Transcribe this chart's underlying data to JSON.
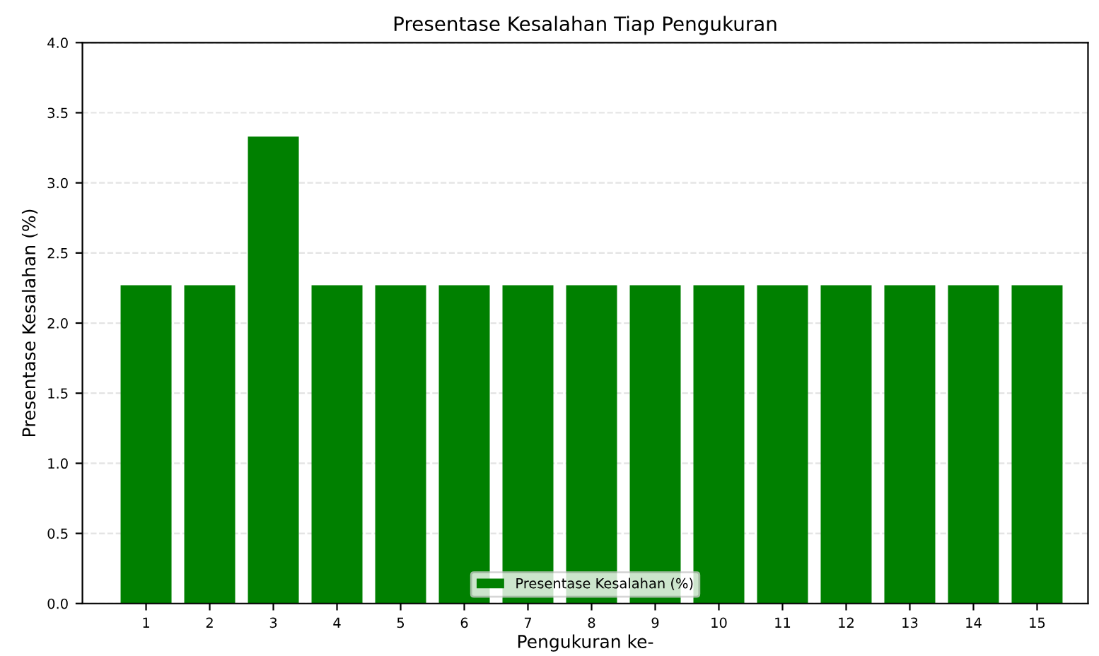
{
  "chart_data": {
    "type": "bar",
    "title": "Presentase Kesalahan Tiap Pengukuran",
    "xlabel": "Pengukuran ke-",
    "ylabel": "Presentase Kesalahan (%)",
    "categories": [
      "1",
      "2",
      "3",
      "4",
      "5",
      "6",
      "7",
      "8",
      "9",
      "10",
      "11",
      "12",
      "13",
      "14",
      "15"
    ],
    "series": [
      {
        "name": "Presentase Kesalahan (%)",
        "color": "#008000",
        "values": [
          2.27,
          2.27,
          3.33,
          2.27,
          2.27,
          2.27,
          2.27,
          2.27,
          2.27,
          2.27,
          2.27,
          2.27,
          2.27,
          2.27,
          2.27
        ]
      }
    ],
    "ylim": [
      0,
      4.0
    ],
    "yticks": [
      {
        "value": 0,
        "label": "0.0"
      },
      {
        "value": 0.5,
        "label": "0.5"
      },
      {
        "value": 1.0,
        "label": "1.0"
      },
      {
        "value": 1.5,
        "label": "1.5"
      },
      {
        "value": 2.0,
        "label": "2.0"
      },
      {
        "value": 2.5,
        "label": "2.5"
      },
      {
        "value": 3.0,
        "label": "3.0"
      },
      {
        "value": 3.5,
        "label": "3.5"
      },
      {
        "value": 4.0,
        "label": "4.0"
      }
    ],
    "grid": "y",
    "legend": "bottom"
  }
}
